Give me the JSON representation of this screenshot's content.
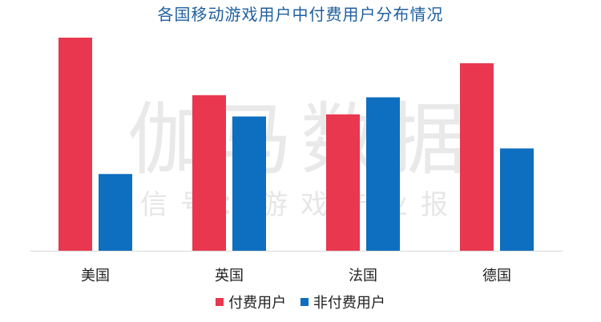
{
  "watermark": {
    "main": "伽马数据",
    "sub": "微信号：游戏产业报告"
  },
  "colors": {
    "paid": "#e8374f",
    "nonpaid": "#0e6ebf",
    "title": "#1f5f9e",
    "axis": "#d9d9d9"
  },
  "chart_data": {
    "type": "bar",
    "title": "各国移动游戏用户中付费用户分布情况",
    "categories": [
      "美国",
      "英国",
      "法国",
      "德国"
    ],
    "series": [
      {
        "name": "付费用户",
        "values": [
          100,
          73,
          64,
          88
        ]
      },
      {
        "name": "非付费用户",
        "values": [
          36,
          63,
          72,
          48
        ]
      }
    ],
    "xlabel": "",
    "ylabel": "",
    "ylim": [
      0,
      100
    ],
    "grid": false,
    "legend_position": "bottom"
  }
}
